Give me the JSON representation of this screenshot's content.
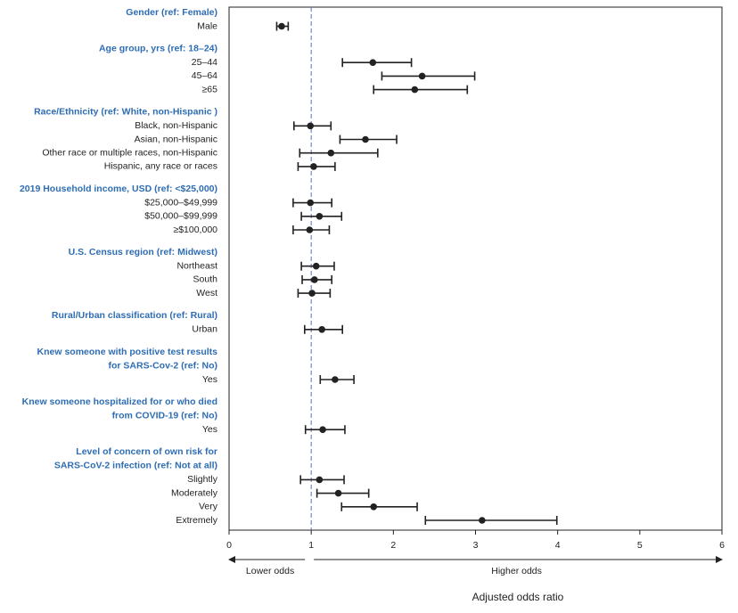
{
  "chart_data": {
    "type": "forest",
    "xlabel": "Adjusted odds ratio",
    "lower_label": "Lower odds",
    "higher_label": "Higher odds",
    "xlim": [
      0,
      6
    ],
    "xticks": [
      0,
      1,
      2,
      3,
      4,
      5,
      6
    ],
    "ref_line": 1,
    "color": "#222222",
    "header_color": "#2e6db4",
    "ref_color": "#5b6fc4",
    "groups": [
      {
        "title": [
          "Gender (ref: Female)"
        ],
        "rows": [
          {
            "label": "Male",
            "value": 0.64,
            "ci": [
              0.58,
              0.72
            ]
          }
        ]
      },
      {
        "title": [
          "Age group, yrs (ref: 18–24)"
        ],
        "rows": [
          {
            "label": "25–44",
            "value": 1.75,
            "ci": [
              1.38,
              2.22
            ]
          },
          {
            "label": "45–64",
            "value": 2.35,
            "ci": [
              1.86,
              2.99
            ]
          },
          {
            "label": "≥65",
            "value": 2.26,
            "ci": [
              1.76,
              2.9
            ]
          }
        ]
      },
      {
        "title": [
          "Race/Ethnicity (ref: White, non-Hispanic )"
        ],
        "rows": [
          {
            "label": "Black, non-Hispanic",
            "value": 0.99,
            "ci": [
              0.79,
              1.24
            ]
          },
          {
            "label": "Asian, non-Hispanic",
            "value": 1.66,
            "ci": [
              1.35,
              2.04
            ]
          },
          {
            "label": "Other race or multiple races, non-Hispanic",
            "value": 1.24,
            "ci": [
              0.86,
              1.81
            ]
          },
          {
            "label": "Hispanic, any race or races",
            "value": 1.03,
            "ci": [
              0.84,
              1.29
            ]
          }
        ]
      },
      {
        "title": [
          "2019 Household income, USD (ref: <$25,000)"
        ],
        "rows": [
          {
            "label": "$25,000–$49,999",
            "value": 0.99,
            "ci": [
              0.78,
              1.25
            ]
          },
          {
            "label": "$50,000–$99,999",
            "value": 1.1,
            "ci": [
              0.88,
              1.37
            ]
          },
          {
            "label": "≥$100,000",
            "value": 0.98,
            "ci": [
              0.78,
              1.22
            ]
          }
        ]
      },
      {
        "title": [
          "U.S. Census region (ref: Midwest)"
        ],
        "rows": [
          {
            "label": "Northeast",
            "value": 1.06,
            "ci": [
              0.88,
              1.28
            ]
          },
          {
            "label": "South",
            "value": 1.04,
            "ci": [
              0.89,
              1.25
            ]
          },
          {
            "label": "West",
            "value": 1.01,
            "ci": [
              0.84,
              1.23
            ]
          }
        ]
      },
      {
        "title": [
          "Rural/Urban classification (ref: Rural)"
        ],
        "rows": [
          {
            "label": "Urban",
            "value": 1.13,
            "ci": [
              0.92,
              1.38
            ]
          }
        ]
      },
      {
        "title": [
          "Knew someone with positive test results",
          "for SARS-Cov-2 (ref: No)"
        ],
        "rows": [
          {
            "label": "Yes",
            "value": 1.29,
            "ci": [
              1.11,
              1.52
            ]
          }
        ]
      },
      {
        "title": [
          "Knew someone hospitalized for or who died",
          "from COVID-19 (ref: No)"
        ],
        "rows": [
          {
            "label": "Yes",
            "value": 1.14,
            "ci": [
              0.93,
              1.41
            ]
          }
        ]
      },
      {
        "title": [
          "Level of concern of own risk for",
          "SARS-CoV-2 infection (ref: Not at all)"
        ],
        "rows": [
          {
            "label": "Slightly",
            "value": 1.1,
            "ci": [
              0.87,
              1.4
            ]
          },
          {
            "label": "Moderately",
            "value": 1.33,
            "ci": [
              1.07,
              1.7
            ]
          },
          {
            "label": "Very",
            "value": 1.76,
            "ci": [
              1.37,
              2.29
            ]
          },
          {
            "label": "Extremely",
            "value": 3.08,
            "ci": [
              2.39,
              3.99
            ]
          }
        ]
      }
    ]
  }
}
